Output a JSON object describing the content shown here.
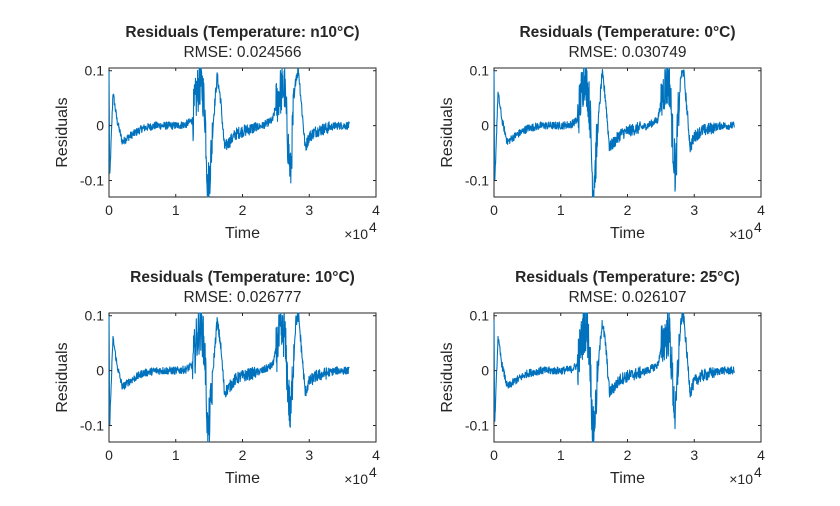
{
  "chart_data": [
    {
      "type": "line",
      "title": "Residuals (Temperature: n10°C)",
      "subtitle": "RMSE: 0.024566",
      "xlabel": "Time",
      "ylabel": "Residuals",
      "x_exponent_label": "×10",
      "x_exponent": "4",
      "xlim": [
        0,
        40000
      ],
      "ylim": [
        -0.13,
        0.105
      ],
      "xticks": [
        0,
        10000,
        20000,
        30000,
        40000
      ],
      "xtick_labels": [
        "0",
        "1",
        "2",
        "3",
        "4"
      ],
      "yticks": [
        -0.1,
        0,
        0.1
      ],
      "ytick_labels": [
        "-0.1",
        "0",
        "0.1"
      ],
      "series": [
        {
          "x": [
            0,
            100,
            600,
            1200,
            2000,
            3000,
            5000,
            7000,
            10000,
            11500,
            12500,
            13200,
            13600,
            14000,
            14400,
            14800,
            15200,
            15700,
            16200,
            16700,
            17300,
            18000,
            19000,
            20000,
            21500,
            23000,
            24500,
            25500,
            26300,
            26800,
            27200,
            27600,
            28000,
            28400,
            28900,
            29400,
            30000,
            31000,
            32500,
            34000,
            36000
          ],
          "y": [
            0.1,
            -0.1,
            0.06,
            0.01,
            -0.03,
            -0.02,
            -0.005,
            0.0,
            0.0,
            0.002,
            0.01,
            0.06,
            0.08,
            0.07,
            0.02,
            -0.12,
            -0.07,
            0.02,
            0.09,
            0.05,
            -0.04,
            -0.03,
            -0.015,
            -0.01,
            -0.005,
            0.0,
            0.01,
            0.06,
            0.07,
            -0.03,
            -0.09,
            0.02,
            0.09,
            0.1,
            0.03,
            -0.04,
            -0.02,
            -0.01,
            -0.005,
            0.0,
            0.0
          ]
        }
      ]
    },
    {
      "type": "line",
      "title": "Residuals (Temperature: 0°C)",
      "subtitle": "RMSE: 0.030749",
      "xlabel": "Time",
      "ylabel": "Residuals",
      "x_exponent_label": "×10",
      "x_exponent": "4",
      "xlim": [
        0,
        40000
      ],
      "ylim": [
        -0.13,
        0.105
      ],
      "xticks": [
        0,
        10000,
        20000,
        30000,
        40000
      ],
      "xtick_labels": [
        "0",
        "1",
        "2",
        "3",
        "4"
      ],
      "yticks": [
        -0.1,
        0,
        0.1
      ],
      "ytick_labels": [
        "-0.1",
        "0",
        "0.1"
      ],
      "series": [
        {
          "x": [
            0,
            100,
            600,
            1200,
            2000,
            3000,
            5000,
            7000,
            10000,
            11500,
            12500,
            13200,
            13600,
            14000,
            14400,
            14800,
            15200,
            15700,
            16200,
            16700,
            17300,
            18000,
            19000,
            20000,
            21500,
            23000,
            24500,
            25500,
            26300,
            26800,
            27200,
            27600,
            28000,
            28400,
            28900,
            29400,
            30000,
            31000,
            32500,
            34000,
            36000
          ],
          "y": [
            0.1,
            -0.11,
            0.06,
            0.01,
            -0.03,
            -0.02,
            -0.005,
            0.0,
            0.0,
            0.002,
            0.01,
            0.07,
            0.09,
            0.07,
            0.02,
            -0.12,
            -0.07,
            0.02,
            0.095,
            0.05,
            -0.04,
            -0.03,
            -0.015,
            -0.01,
            -0.005,
            0.0,
            0.01,
            0.07,
            0.08,
            -0.03,
            -0.09,
            0.02,
            0.09,
            0.1,
            0.03,
            -0.04,
            -0.02,
            -0.01,
            -0.005,
            0.0,
            0.0
          ]
        }
      ]
    },
    {
      "type": "line",
      "title": "Residuals (Temperature: 10°C)",
      "subtitle": "RMSE: 0.026777",
      "xlabel": "Time",
      "ylabel": "Residuals",
      "x_exponent_label": "×10",
      "x_exponent": "4",
      "xlim": [
        0,
        40000
      ],
      "ylim": [
        -0.13,
        0.105
      ],
      "xticks": [
        0,
        10000,
        20000,
        30000,
        40000
      ],
      "xtick_labels": [
        "0",
        "1",
        "2",
        "3",
        "4"
      ],
      "yticks": [
        -0.1,
        0,
        0.1
      ],
      "ytick_labels": [
        "-0.1",
        "0",
        "0.1"
      ],
      "series": [
        {
          "x": [
            0,
            100,
            600,
            1200,
            2000,
            3000,
            5000,
            7000,
            10000,
            11500,
            12500,
            13200,
            13600,
            14000,
            14400,
            14800,
            15200,
            15700,
            16200,
            16700,
            17300,
            18000,
            19000,
            20000,
            21500,
            23000,
            24500,
            25500,
            26300,
            26800,
            27200,
            27600,
            28000,
            28400,
            28900,
            29400,
            30000,
            31000,
            32500,
            34000,
            36000
          ],
          "y": [
            0.1,
            -0.1,
            0.06,
            0.01,
            -0.03,
            -0.02,
            -0.005,
            0.0,
            0.0,
            0.002,
            0.01,
            0.06,
            0.08,
            0.07,
            0.02,
            -0.12,
            -0.07,
            0.02,
            0.09,
            0.05,
            -0.04,
            -0.03,
            -0.015,
            -0.01,
            -0.005,
            0.0,
            0.01,
            0.06,
            0.07,
            -0.03,
            -0.09,
            0.02,
            0.09,
            0.1,
            0.03,
            -0.04,
            -0.02,
            -0.01,
            -0.005,
            0.0,
            0.0
          ]
        }
      ]
    },
    {
      "type": "line",
      "title": "Residuals (Temperature: 25°C)",
      "subtitle": "RMSE: 0.026107",
      "xlabel": "Time",
      "ylabel": "Residuals",
      "x_exponent_label": "×10",
      "x_exponent": "4",
      "xlim": [
        0,
        40000
      ],
      "ylim": [
        -0.13,
        0.105
      ],
      "xticks": [
        0,
        10000,
        20000,
        30000,
        40000
      ],
      "xtick_labels": [
        "0",
        "1",
        "2",
        "3",
        "4"
      ],
      "yticks": [
        -0.1,
        0,
        0.1
      ],
      "ytick_labels": [
        "-0.1",
        "0",
        "0.1"
      ],
      "series": [
        {
          "x": [
            0,
            100,
            600,
            1200,
            2000,
            3000,
            5000,
            7000,
            10000,
            11500,
            12500,
            13200,
            13600,
            14000,
            14400,
            14800,
            15200,
            15700,
            16200,
            16700,
            17300,
            18000,
            19000,
            20000,
            21500,
            23000,
            24500,
            25500,
            26300,
            26800,
            27200,
            27600,
            28000,
            28400,
            28900,
            29400,
            30000,
            31000,
            32500,
            34000,
            36000
          ],
          "y": [
            0.1,
            -0.1,
            0.06,
            0.01,
            -0.03,
            -0.02,
            -0.005,
            0.0,
            0.0,
            0.002,
            0.01,
            0.06,
            0.08,
            0.07,
            0.02,
            -0.12,
            -0.07,
            0.02,
            0.09,
            0.05,
            -0.04,
            -0.03,
            -0.015,
            -0.01,
            -0.005,
            0.0,
            0.01,
            0.06,
            0.07,
            -0.03,
            -0.09,
            0.02,
            0.09,
            0.1,
            0.03,
            -0.04,
            -0.02,
            -0.01,
            -0.005,
            0.0,
            0.0
          ]
        }
      ]
    }
  ],
  "colors": {
    "line": "#0072bd",
    "axes": "#262626",
    "text": "#262626",
    "background": "#ffffff"
  }
}
